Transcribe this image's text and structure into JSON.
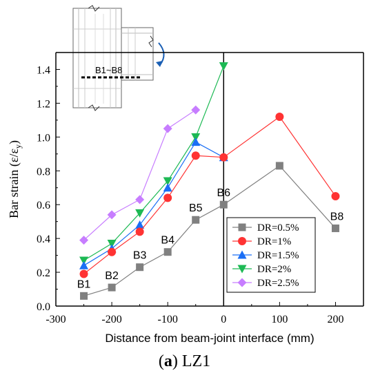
{
  "chart_data": {
    "type": "line",
    "xlabel": "Distance from beam-joint interface (mm)",
    "ylabel_main": "Bar strain (ε/ε",
    "ylabel_sub": "y",
    "ylabel_close": ")",
    "xlim": [
      -300,
      250
    ],
    "ylim": [
      0.0,
      1.5
    ],
    "xticks": [
      -300,
      -200,
      -100,
      0,
      100,
      200
    ],
    "xtick_labels": [
      "-300",
      "-200",
      "-100",
      "0",
      "100",
      "200"
    ],
    "yticks": [
      0.0,
      0.2,
      0.4,
      0.6,
      0.8,
      1.0,
      1.2,
      1.4
    ],
    "ytick_labels": [
      "0.0",
      "0.2",
      "0.4",
      "0.6",
      "0.8",
      "1.0",
      "1.2",
      "1.4"
    ],
    "legend_position": "bottom-right",
    "series": [
      {
        "name": "DR=0.5%",
        "color": "#808080",
        "marker": "square",
        "x": [
          -250,
          -200,
          -150,
          -100,
          -50,
          0,
          100,
          200
        ],
        "y": [
          0.06,
          0.11,
          0.23,
          0.32,
          0.51,
          0.6,
          0.83,
          0.46
        ]
      },
      {
        "name": "DR=1%",
        "color": "#ff3333",
        "marker": "circle",
        "x": [
          -250,
          -200,
          -150,
          -100,
          -50,
          0,
          100,
          200
        ],
        "y": [
          0.19,
          0.32,
          0.44,
          0.64,
          0.89,
          0.88,
          1.12,
          0.65
        ]
      },
      {
        "name": "DR=1.5%",
        "color": "#1a6ef5",
        "marker": "triangle-up",
        "x": [
          -250,
          -200,
          -150,
          -100,
          -50,
          0
        ],
        "y": [
          0.24,
          0.34,
          0.48,
          0.7,
          0.97,
          0.88
        ]
      },
      {
        "name": "DR=2%",
        "color": "#1db954",
        "marker": "triangle-down",
        "x": [
          -250,
          -200,
          -150,
          -100,
          -50,
          0
        ],
        "y": [
          0.27,
          0.37,
          0.55,
          0.74,
          1.0,
          1.42
        ]
      },
      {
        "name": "DR=2.5%",
        "color": "#c77dff",
        "marker": "diamond",
        "x": [
          -250,
          -200,
          -150,
          -100,
          -50
        ],
        "y": [
          0.39,
          0.54,
          0.63,
          1.05,
          1.16
        ]
      }
    ],
    "point_labels": [
      {
        "text": "B1",
        "x": -250,
        "y": 0.06
      },
      {
        "text": "B2",
        "x": -200,
        "y": 0.11
      },
      {
        "text": "B3",
        "x": -150,
        "y": 0.23
      },
      {
        "text": "B4",
        "x": -100,
        "y": 0.32
      },
      {
        "text": "B5",
        "x": -50,
        "y": 0.51
      },
      {
        "text": "B6",
        "x": 0,
        "y": 0.6
      },
      {
        "text": "B8",
        "x": 200,
        "y": 0.46
      }
    ],
    "reference_line_x": 0,
    "inset_label": "B1~B8"
  },
  "caption": {
    "prefix": "(",
    "letter": "a",
    "suffix": ") LZ1"
  }
}
